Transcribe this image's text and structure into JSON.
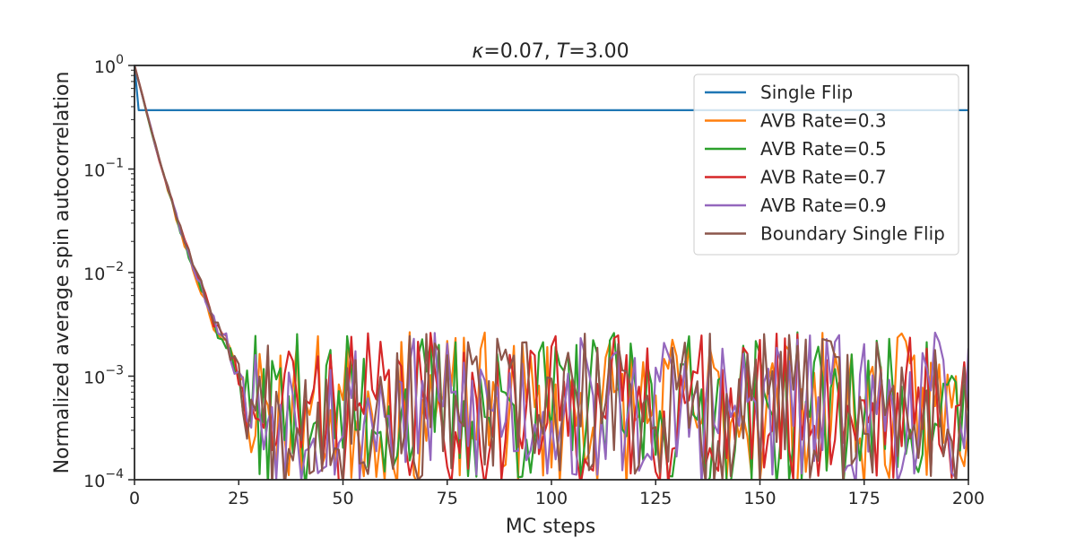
{
  "chart_data": {
    "type": "line",
    "title": "κ=0.07, T=3.00",
    "title_parts": {
      "kappa_symbol": "κ",
      "kappa_value": "=0.07, ",
      "t_symbol": "T",
      "t_value": "=3.00"
    },
    "xlabel": "MC steps",
    "ylabel": "Normalized average spin autocorrelation",
    "xlim": [
      0,
      200
    ],
    "ylim": [
      0.0001,
      1
    ],
    "yscale": "log",
    "xticks": [
      0,
      25,
      50,
      75,
      100,
      125,
      150,
      175,
      200
    ],
    "xtick_labels": [
      "0",
      "25",
      "50",
      "75",
      "100",
      "125",
      "150",
      "175",
      "200"
    ],
    "yticks": [
      {
        "value": 1,
        "base": "10",
        "exp": "0"
      },
      {
        "value": 0.1,
        "base": "10",
        "exp": "−1"
      },
      {
        "value": 0.01,
        "base": "10",
        "exp": "−2"
      },
      {
        "value": 0.001,
        "base": "10",
        "exp": "−3"
      },
      {
        "value": 0.0001,
        "base": "10",
        "exp": "−4"
      }
    ],
    "grid": false,
    "legend_position": "top-right",
    "series": [
      {
        "name": "Single Flip",
        "color": "#1f77b4",
        "noise_seed": 11,
        "noise_amp": 0
      },
      {
        "name": "AVB Rate=0.3",
        "color": "#ff7f0e",
        "noise_seed": 23,
        "noise_amp": 1
      },
      {
        "name": "AVB Rate=0.5",
        "color": "#2ca02c",
        "noise_seed": 37,
        "noise_amp": 1
      },
      {
        "name": "AVB Rate=0.7",
        "color": "#d62728",
        "noise_seed": 41,
        "noise_amp": 1
      },
      {
        "name": "AVB Rate=0.9",
        "color": "#9467bd",
        "noise_seed": 53,
        "noise_amp": 1
      },
      {
        "name": "Boundary Single Flip",
        "color": "#8c564b",
        "noise_seed": 67,
        "noise_amp": 1
      }
    ],
    "single_flip_plateau": 0.37,
    "decay_envelope": {
      "x": [
        0,
        5,
        10,
        15,
        20,
        25
      ],
      "y": [
        1,
        0.17,
        0.035,
        0.009,
        0.0028,
        0.0015
      ]
    },
    "noise_floor_center": 0.0004
  }
}
